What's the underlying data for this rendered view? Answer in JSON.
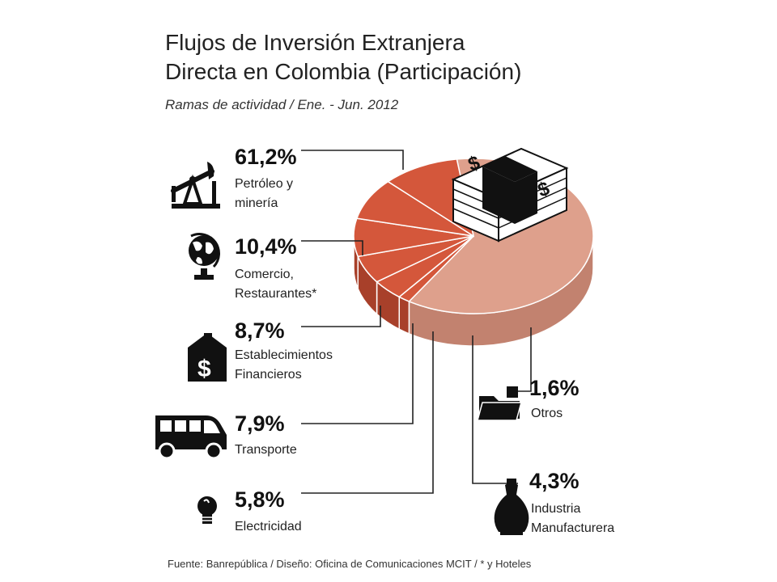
{
  "title": [
    "Flujos de Inversión Extranjera",
    "Directa en Colombia (Participación)"
  ],
  "subtitle": "Ramas de actividad / Ene. - Jun. 2012",
  "source": "Fuente: Banrepública / Diseño: Oficina de Comunicaciones MCIT  / * y Hoteles",
  "icons": {
    "petroleo": "oil-pump-icon",
    "comercio": "globe-icon",
    "financieros": "bank-building-icon",
    "transporte": "van-icon",
    "electricidad": "light-bulb-icon",
    "otros": "folder-icon",
    "industria": "dress-form-icon",
    "money": "money-stack-icon"
  },
  "colors": {
    "major_slice": "#dea08c",
    "minor_slice": "#d4573b",
    "minor_side": "#a8402a",
    "major_side": "#c2826f"
  },
  "chart_data": {
    "type": "pie",
    "title": "Flujos de Inversión Extranjera Directa en Colombia (Participación)",
    "subtitle": "Ramas de actividad / Ene. - Jun. 2012",
    "unit": "%",
    "slices": [
      {
        "label": "Petróleo y minería",
        "value": 61.2,
        "display": "61,2%",
        "lines": [
          "Petróleo y",
          "minería"
        ]
      },
      {
        "label": "Comercio, Restaurantes*",
        "value": 10.4,
        "display": "10,4%",
        "lines": [
          "Comercio,",
          "Restaurantes*"
        ]
      },
      {
        "label": "Establecimientos Financieros",
        "value": 8.7,
        "display": "8,7%",
        "lines": [
          "Establecimientos",
          "Financieros"
        ]
      },
      {
        "label": "Transporte",
        "value": 7.9,
        "display": "7,9%",
        "lines": [
          "Transporte"
        ]
      },
      {
        "label": "Electricidad",
        "value": 5.8,
        "display": "5,8%",
        "lines": [
          "Electricidad"
        ]
      },
      {
        "label": "Industria Manufacturera",
        "value": 4.3,
        "display": "4,3%",
        "lines": [
          "Industria",
          "Manufacturera"
        ]
      },
      {
        "label": "Otros",
        "value": 1.6,
        "display": "1,6%",
        "lines": [
          "Otros"
        ]
      }
    ]
  }
}
